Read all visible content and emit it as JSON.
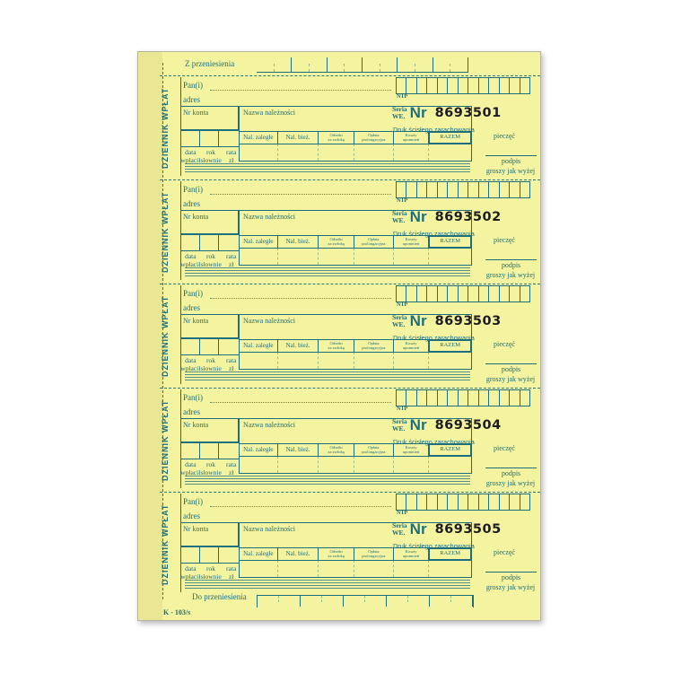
{
  "colors": {
    "paper": "#f4f3a0",
    "ink": "#1e6f7d",
    "serial_ink": "#1d1d1f",
    "stub": "#e9e694"
  },
  "top": {
    "carry_label": "Z przeniesienia"
  },
  "bottom": {
    "carry_label": "Do przeniesienia",
    "form_code": "K - 103/s"
  },
  "labels": {
    "journal": "DZIENNIK WPŁAT",
    "payer": "Pan(i)",
    "address": "adres",
    "account": "Nr konta",
    "charge": "Nazwa należności",
    "nip": "NIP",
    "seria": "Seria",
    "we": "WE.",
    "nr": "Nr",
    "strict": "Druk ścisłego zarachowania",
    "stamp": "pieczęć",
    "signature": "podpis",
    "grosze": "groszy jak wyżej",
    "data": "data",
    "rok": "rok",
    "rata": "rata",
    "wplacil": "wpłacił",
    "slownie": "słownie",
    "zl": "zł",
    "columns": [
      {
        "l1": "Nal. zaległe",
        "l2": ""
      },
      {
        "l1": "Nal. bież.",
        "l2": ""
      },
      {
        "l1": "Odsetki",
        "l2": "za zwłokę"
      },
      {
        "l1": "Opłata",
        "l2": "prolongacyjna"
      },
      {
        "l1": "Koszty",
        "l2": "upomnień"
      },
      {
        "l1": "RAZEM",
        "l2": ""
      }
    ]
  },
  "sections": [
    {
      "serial": "8693501"
    },
    {
      "serial": "8693502"
    },
    {
      "serial": "8693503"
    },
    {
      "serial": "8693504"
    },
    {
      "serial": "8693505"
    }
  ]
}
